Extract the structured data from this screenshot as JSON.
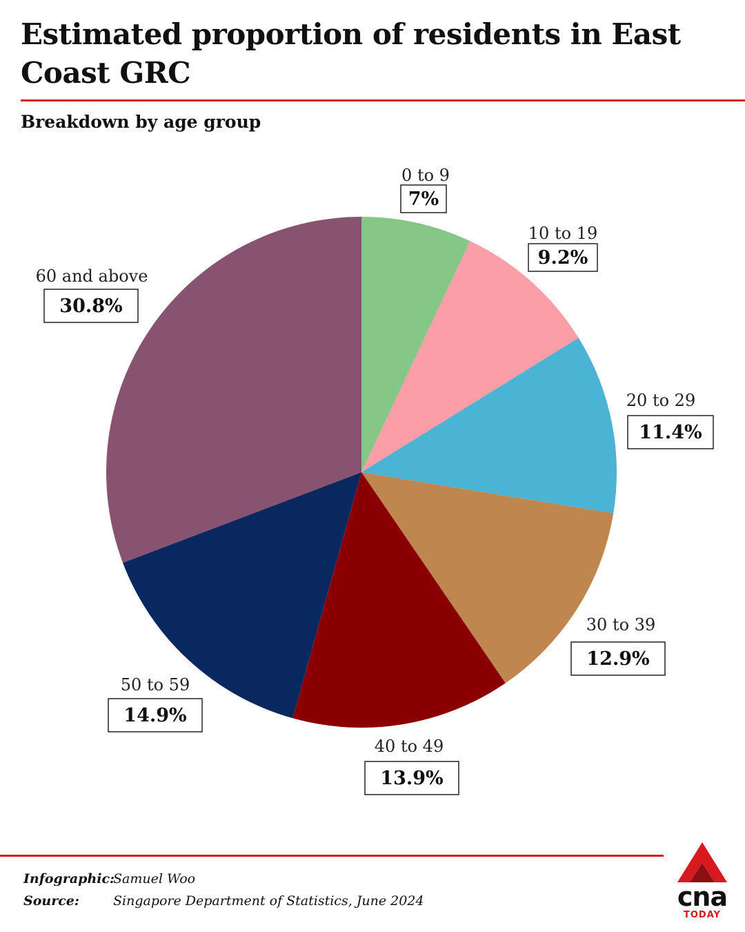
{
  "title": "Estimated proportion of residents in East Coast GRC",
  "subtitle": "Breakdown by age group",
  "chart_data": {
    "type": "pie",
    "categories": [
      "0 to 9",
      "10 to 19",
      "20 to 29",
      "30 to 39",
      "40 to 49",
      "50 to 59",
      "60 and above"
    ],
    "values": [
      7,
      9.2,
      11.4,
      12.9,
      13.9,
      14.9,
      30.8
    ],
    "value_labels": [
      "7%",
      "9.2%",
      "11.4%",
      "12.9%",
      "13.9%",
      "14.9%",
      "30.8%"
    ],
    "colors": [
      "#86c687",
      "#fb9ea8",
      "#4bb3d4",
      "#c08650",
      "#8a0002",
      "#0a2860",
      "#875370"
    ],
    "start": "12 o'clock",
    "direction": "clockwise"
  },
  "credits": {
    "infographic_label": "Infographic:",
    "infographic_value": "Samuel Woo",
    "source_label": "Source:",
    "source_value": "Singapore Department of Statistics, June 2024"
  },
  "logo": {
    "word": "cna",
    "tag": "TODAY",
    "accent": "#d71920"
  }
}
